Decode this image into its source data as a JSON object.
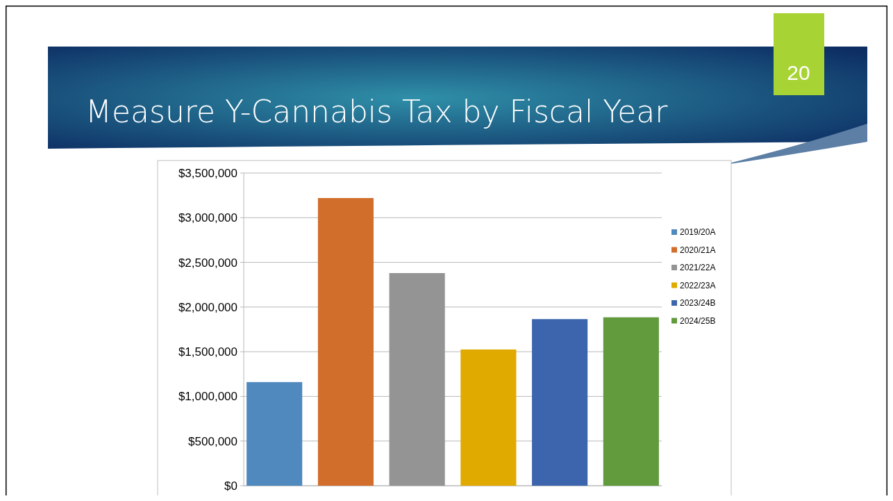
{
  "chart_data": {
    "type": "bar",
    "title": "Measure Y-Cannabis Tax by Fiscal Year",
    "annotations": [
      "20"
    ],
    "categories": [
      null
    ],
    "series": [
      {
        "name": "2019/20A",
        "color": "#4f89bd",
        "values": [
          1160000
        ]
      },
      {
        "name": "2020/21A",
        "color": "#d26e2b",
        "values": [
          3220000
        ]
      },
      {
        "name": "2021/22A",
        "color": "#949494",
        "values": [
          2380000
        ]
      },
      {
        "name": "2022/23A",
        "color": "#e0aa00",
        "values": [
          1525000
        ]
      },
      {
        "name": "2023/24B",
        "color": "#3d65ad",
        "values": [
          1865000
        ]
      },
      {
        "name": "2024/25B",
        "color": "#629a3e",
        "values": [
          1885000
        ]
      }
    ],
    "ylim": [
      0,
      3500000
    ],
    "yticks": [
      {
        "value": 0,
        "label": "$0"
      },
      {
        "value": 500000,
        "label": "$500,000"
      },
      {
        "value": 1000000,
        "label": "$1,000,000"
      },
      {
        "value": 1500000,
        "label": "$1,500,000"
      },
      {
        "value": 2000000,
        "label": "$2,000,000"
      },
      {
        "value": 2500000,
        "label": "$2,500,000"
      },
      {
        "value": 3000000,
        "label": "$3,000,000"
      },
      {
        "value": 3500000,
        "label": "$3,500,000"
      }
    ],
    "grid": "y",
    "legend": "right"
  }
}
